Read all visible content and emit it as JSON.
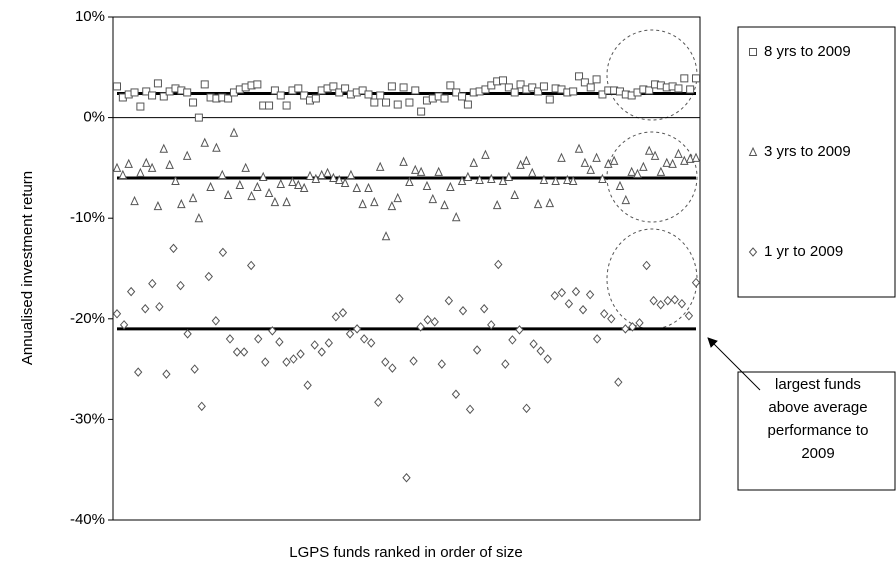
{
  "chart_data": {
    "type": "scatter",
    "y_label": "Annualised investment return",
    "x_label": "LGPS funds ranked in order of size",
    "ylim": [
      -40,
      10
    ],
    "yticks": [
      {
        "value": 10,
        "label": "10%"
      },
      {
        "value": 0,
        "label": "0%"
      },
      {
        "value": -10,
        "label": "-10%"
      },
      {
        "value": -20,
        "label": "-20%"
      },
      {
        "value": -30,
        "label": "-30%"
      },
      {
        "value": -40,
        "label": "-40%"
      }
    ],
    "zero_line": true,
    "legend": "right",
    "annotation": [
      "largest funds",
      "above average",
      "performance to",
      "2009"
    ],
    "series": [
      {
        "name": "8 yrs to 2009",
        "marker": "square",
        "color": "#555555",
        "mean": 2.4,
        "values": [
          3.1,
          2.0,
          2.3,
          2.5,
          1.1,
          2.6,
          2.2,
          3.4,
          2.1,
          2.6,
          2.9,
          2.7,
          2.5,
          1.5,
          0.0,
          3.3,
          2.0,
          1.9,
          2.0,
          1.9,
          2.5,
          2.8,
          3.0,
          3.2,
          3.3,
          1.2,
          1.2,
          2.7,
          2.2,
          1.2,
          2.7,
          2.9,
          2.2,
          1.7,
          1.9,
          2.7,
          2.9,
          3.1,
          2.5,
          2.9,
          2.3,
          2.5,
          2.7,
          2.3,
          1.5,
          2.2,
          1.5,
          3.1,
          1.3,
          3.0,
          1.5,
          2.7,
          0.6,
          1.7,
          1.9,
          2.1,
          1.9,
          3.2,
          2.5,
          2.1,
          1.3,
          2.5,
          2.6,
          2.8,
          3.2,
          3.6,
          3.7,
          3.0,
          2.5,
          3.3,
          2.8,
          3.0,
          2.6,
          3.1,
          1.8,
          2.9,
          2.8,
          2.5,
          2.6,
          4.1,
          3.5,
          3.0,
          3.8,
          2.3,
          2.7,
          2.7,
          2.6,
          2.3,
          2.2,
          2.5,
          2.8,
          2.7,
          3.3,
          3.2,
          3.0,
          3.1,
          2.9,
          3.9,
          2.8,
          3.9
        ]
      },
      {
        "name": "3 yrs to 2009",
        "marker": "triangle",
        "color": "#555555",
        "mean": -6.0,
        "values": [
          -5,
          -5.7,
          -4.6,
          -8.3,
          -5.5,
          -4.5,
          -5,
          -8.8,
          -3.1,
          -4.7,
          -6.3,
          -8.6,
          -3.8,
          -8,
          -10,
          -2.5,
          -6.9,
          -3,
          -5.7,
          -7.7,
          -1.5,
          -6.7,
          -5,
          -7.8,
          -6.9,
          -5.9,
          -7.5,
          -8.4,
          -6.6,
          -8.4,
          -6.4,
          -6.7,
          -7,
          -5.8,
          -6.1,
          -5.7,
          -5.5,
          -6,
          -6.2,
          -6.5,
          -5.7,
          -7,
          -8.6,
          -7,
          -8.4,
          -4.9,
          -11.8,
          -8.8,
          -8,
          -4.4,
          -6.4,
          -5.2,
          -5.4,
          -6.8,
          -8.1,
          -5.4,
          -8.7,
          -6.9,
          -9.9,
          -6.3,
          -5.9,
          -4.5,
          -6.2,
          -3.7,
          -6.1,
          -8.7,
          -6.3,
          -5.9,
          -7.7,
          -4.7,
          -4.3,
          -5.5,
          -8.6,
          -6.2,
          -8.5,
          -6.3,
          -4,
          -6.2,
          -6.3,
          -3.1,
          -4.5,
          -5.2,
          -4,
          -6.1,
          -4.6,
          -4.3,
          -6.8,
          -8.2,
          -5.4,
          -5.6,
          -4.9,
          -3.3,
          -3.8,
          -5.4,
          -4.5,
          -4.6,
          -3.6,
          -4.3,
          -4.1,
          -4.0
        ]
      },
      {
        "name": "1 yr to 2009",
        "marker": "diamond",
        "color": "#555555",
        "mean": -21.0,
        "values": [
          -19.5,
          -20.6,
          -17.3,
          -25.3,
          -19,
          -16.5,
          -18.8,
          -25.5,
          -13,
          -16.7,
          -21.5,
          -25,
          -28.7,
          -15.8,
          -20.2,
          -13.4,
          -22,
          -23.3,
          -23.3,
          -14.7,
          -22,
          -24.3,
          -21.2,
          -22.3,
          -24.3,
          -24,
          -23.5,
          -26.6,
          -22.6,
          -23.3,
          -22.4,
          -19.8,
          -19.4,
          -21.5,
          -21,
          -22,
          -22.4,
          -28.3,
          -24.3,
          -24.9,
          -18,
          -35.8,
          -24.2,
          -20.8,
          -20.1,
          -20.3,
          -24.5,
          -18.2,
          -27.5,
          -19.2,
          -29,
          -23.1,
          -19,
          -20.6,
          -14.6,
          -24.5,
          -22.1,
          -21.1,
          -28.9,
          -22.5,
          -23.2,
          -24,
          -17.7,
          -17.4,
          -18.5,
          -17.3,
          -19.1,
          -17.6,
          -22,
          -19.5,
          -20,
          -26.3,
          -21,
          -20.8,
          -20.4,
          -14.7,
          -18.2,
          -18.6,
          -18.2,
          -18.1,
          -18.5,
          -19.7,
          -16.4
        ]
      }
    ]
  }
}
